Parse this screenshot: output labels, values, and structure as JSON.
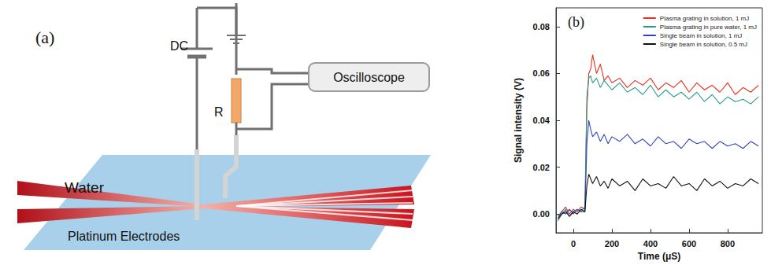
{
  "diagram": {
    "panel": "(a)",
    "labels": {
      "dc": "DC",
      "resistor": "R",
      "oscilloscope": "Oscilloscope",
      "water": "Water",
      "electrodes": "Platinum Electrodes"
    }
  },
  "chart_data": {
    "type": "line",
    "panel": "(b)",
    "xlabel": "Time (μS)",
    "ylabel": "Signal intensity (V)",
    "x": [
      -80,
      -60,
      -40,
      -20,
      0,
      20,
      40,
      60,
      70,
      80,
      90,
      100,
      120,
      140,
      160,
      180,
      200,
      240,
      280,
      320,
      360,
      400,
      440,
      480,
      520,
      560,
      600,
      640,
      680,
      720,
      760,
      800,
      840,
      880,
      920,
      960
    ],
    "series": [
      {
        "name": "Plasma grating in solution, 1 mJ",
        "color": "#e8301c",
        "values": [
          -0.002,
          0.001,
          0.003,
          0.0,
          0.002,
          0.001,
          0.003,
          0.002,
          0.045,
          0.06,
          0.062,
          0.068,
          0.06,
          0.064,
          0.057,
          0.059,
          0.056,
          0.058,
          0.054,
          0.057,
          0.055,
          0.058,
          0.053,
          0.056,
          0.054,
          0.057,
          0.052,
          0.056,
          0.053,
          0.055,
          0.052,
          0.056,
          0.051,
          0.054,
          0.052,
          0.055
        ]
      },
      {
        "name": "Plasma grating in pure water, 1 mJ",
        "color": "#2a9a8a",
        "values": [
          -0.003,
          0.0,
          0.002,
          -0.001,
          0.001,
          0.002,
          0.001,
          0.003,
          0.05,
          0.058,
          0.059,
          0.056,
          0.058,
          0.054,
          0.057,
          0.055,
          0.053,
          0.056,
          0.052,
          0.054,
          0.051,
          0.055,
          0.05,
          0.053,
          0.05,
          0.052,
          0.049,
          0.052,
          0.048,
          0.051,
          0.047,
          0.05,
          0.048,
          0.049,
          0.047,
          0.05
        ]
      },
      {
        "name": "Single beam in solution, 1 mJ",
        "color": "#3344bb",
        "values": [
          -0.001,
          0.001,
          0.0,
          0.002,
          0.0,
          0.002,
          0.001,
          0.001,
          0.03,
          0.04,
          0.036,
          0.033,
          0.035,
          0.031,
          0.034,
          0.03,
          0.033,
          0.031,
          0.034,
          0.03,
          0.032,
          0.029,
          0.033,
          0.03,
          0.031,
          0.028,
          0.032,
          0.03,
          0.031,
          0.028,
          0.031,
          0.029,
          0.03,
          0.028,
          0.031,
          0.029
        ]
      },
      {
        "name": "Single beam in solution, 0.5 mJ",
        "color": "#111111",
        "values": [
          -0.002,
          0.0,
          0.001,
          -0.001,
          0.001,
          0.0,
          0.002,
          0.001,
          0.012,
          0.017,
          0.015,
          0.013,
          0.016,
          0.012,
          0.014,
          0.011,
          0.015,
          0.012,
          0.014,
          0.01,
          0.015,
          0.012,
          0.013,
          0.011,
          0.016,
          0.012,
          0.013,
          0.01,
          0.015,
          0.012,
          0.014,
          0.011,
          0.013,
          0.012,
          0.015,
          0.013
        ]
      }
    ],
    "xlim": [
      -90,
      980
    ],
    "xticks": [
      0,
      200,
      400,
      600,
      800
    ],
    "ylim": [
      -0.008,
      0.088
    ],
    "yticks": [
      {
        "value": 0,
        "label": "0.00"
      },
      {
        "value": 0.02,
        "label": "0.02"
      },
      {
        "value": 0.04,
        "label": "0.04"
      },
      {
        "value": 0.06,
        "label": "0.06"
      },
      {
        "value": 0.08,
        "label": "0.08"
      }
    ],
    "legend": "upper right",
    "grid": false,
    "marker": "none"
  }
}
